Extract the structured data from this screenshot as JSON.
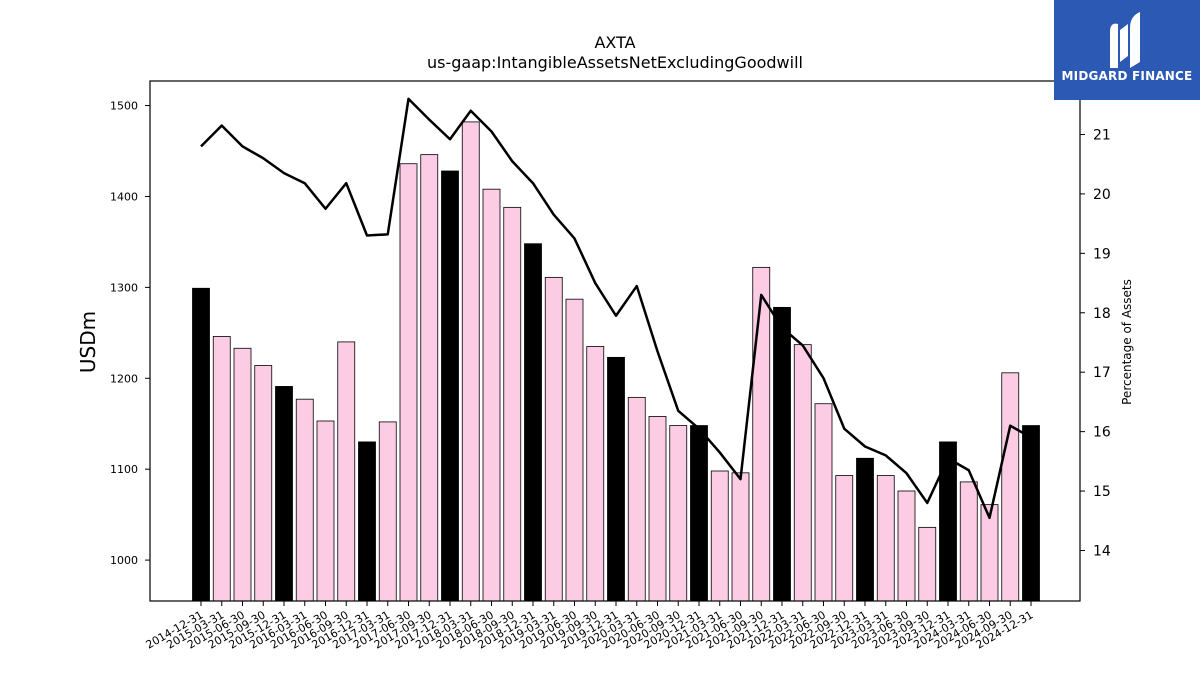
{
  "chart_data": {
    "type": "bar",
    "title": "AXTA",
    "subtitle": "us-gaap:IntangibleAssetsNetExcludingGoodwill",
    "ylabel": "USDm",
    "y2label": "Percentage of Assets",
    "ylim": [
      955,
      1527
    ],
    "y2lim": [
      13.15,
      21.9
    ],
    "yticks": [
      1000,
      1100,
      1200,
      1300,
      1400,
      1500
    ],
    "y2ticks": [
      14,
      15,
      16,
      17,
      18,
      19,
      20,
      21
    ],
    "colors": {
      "fy_bar": "#000000",
      "quarter_bar": "#fccce4",
      "bar_edge": "#000000",
      "line": "#000000"
    },
    "categories": [
      "2014-12-31",
      "2015-03-31",
      "2015-06-30",
      "2015-09-30",
      "2015-12-31",
      "2016-03-31",
      "2016-06-30",
      "2016-09-30",
      "2016-12-31",
      "2017-03-31",
      "2017-06-30",
      "2017-09-30",
      "2017-12-31",
      "2018-03-31",
      "2018-06-30",
      "2018-09-30",
      "2018-12-31",
      "2019-03-31",
      "2019-06-30",
      "2019-09-30",
      "2019-12-31",
      "2020-03-31",
      "2020-06-30",
      "2020-09-30",
      "2020-12-31",
      "2021-03-31",
      "2021-06-30",
      "2021-09-30",
      "2021-12-31",
      "2022-03-31",
      "2022-06-30",
      "2022-09-30",
      "2022-12-31",
      "2023-03-31",
      "2023-06-30",
      "2023-09-30",
      "2023-12-31",
      "2024-03-31",
      "2024-06-30",
      "2024-09-30",
      "2024-12-31"
    ],
    "series": [
      {
        "kind": "bar",
        "values": [
          1299,
          1246,
          1233,
          1214,
          1191,
          1177,
          1153,
          1240,
          1130,
          1152,
          1436,
          1446,
          1428,
          1482,
          1408,
          1388,
          1348,
          1311,
          1287,
          1235,
          1223,
          1179,
          1158,
          1148,
          1148,
          1098,
          1096,
          1322,
          1278,
          1237,
          1172,
          1093,
          1112,
          1093,
          1076,
          1036,
          1130,
          1086,
          1061,
          1206,
          1148
        ],
        "annual": [
          true,
          false,
          false,
          false,
          true,
          false,
          false,
          false,
          true,
          false,
          false,
          false,
          true,
          false,
          false,
          false,
          true,
          false,
          false,
          false,
          true,
          false,
          false,
          false,
          true,
          false,
          false,
          false,
          true,
          false,
          false,
          false,
          true,
          false,
          false,
          false,
          true,
          false,
          false,
          false,
          true
        ]
      },
      {
        "kind": "line",
        "axis": "right",
        "values": [
          20.8,
          21.15,
          20.8,
          20.6,
          20.35,
          20.18,
          19.75,
          20.18,
          19.3,
          19.32,
          21.6,
          21.25,
          20.92,
          21.4,
          21.05,
          20.55,
          20.18,
          19.65,
          19.25,
          18.5,
          17.95,
          18.45,
          17.35,
          16.35,
          16.05,
          15.65,
          15.2,
          18.3,
          17.75,
          17.45,
          16.9,
          16.05,
          15.75,
          15.6,
          15.3,
          14.8,
          15.55,
          15.35,
          14.55,
          16.1,
          15.9
        ]
      }
    ]
  },
  "logo": {
    "name": "MIDGARD FINANCE"
  }
}
